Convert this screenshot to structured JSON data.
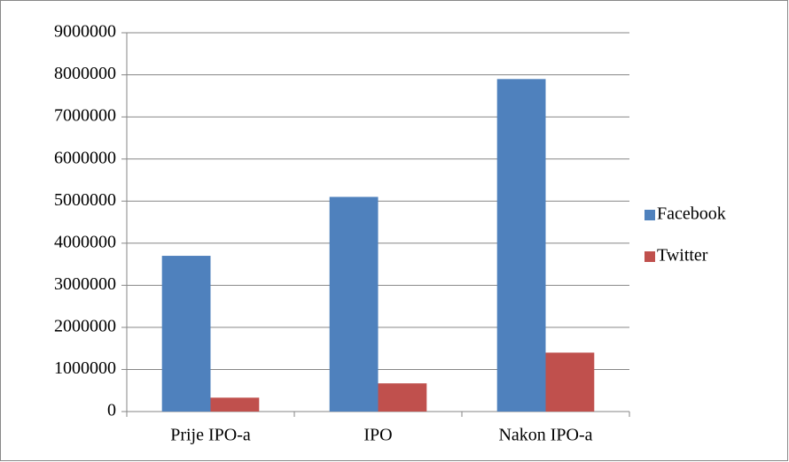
{
  "chart_data": {
    "type": "bar",
    "categories": [
      "Prije IPO-a",
      "IPO",
      "Nakon IPO-a"
    ],
    "series": [
      {
        "name": "Facebook",
        "color": "#4f81bd",
        "values": [
          3700000,
          5100000,
          7900000
        ]
      },
      {
        "name": "Twitter",
        "color": "#c0504d",
        "values": [
          330000,
          670000,
          1400000
        ]
      }
    ],
    "ylim": [
      0,
      9000000
    ],
    "yticks": [
      0,
      1000000,
      2000000,
      3000000,
      4000000,
      5000000,
      6000000,
      7000000,
      8000000,
      9000000
    ],
    "grid": true,
    "legend": "right"
  }
}
